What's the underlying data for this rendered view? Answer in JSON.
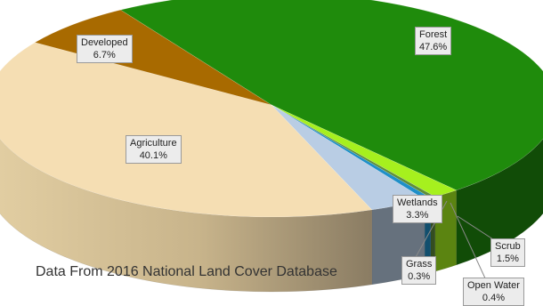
{
  "chart_data": {
    "type": "pie",
    "title": "",
    "note": "Data From 2016 National Land Cover Database",
    "slices": [
      {
        "name": "Forest",
        "value": 47.6,
        "label": "47.6%",
        "color": "#1f8b0c"
      },
      {
        "name": "Scrub",
        "value": 1.5,
        "label": "1.5%",
        "color": "#a6f01e"
      },
      {
        "name": "Grass",
        "value": 0.3,
        "label": "0.3%",
        "color": "#5e8e3a"
      },
      {
        "name": "Open Water",
        "value": 0.4,
        "label": "0.4%",
        "color": "#1f8fc8"
      },
      {
        "name": "Wetlands",
        "value": 3.3,
        "label": "3.3%",
        "color": "#b9cde4"
      },
      {
        "name": "Agriculture",
        "value": 40.1,
        "label": "40.1%",
        "color": "#f5deb3"
      },
      {
        "name": "Developed",
        "value": 6.7,
        "label": "6.7%",
        "color": "#a86a00"
      }
    ]
  }
}
